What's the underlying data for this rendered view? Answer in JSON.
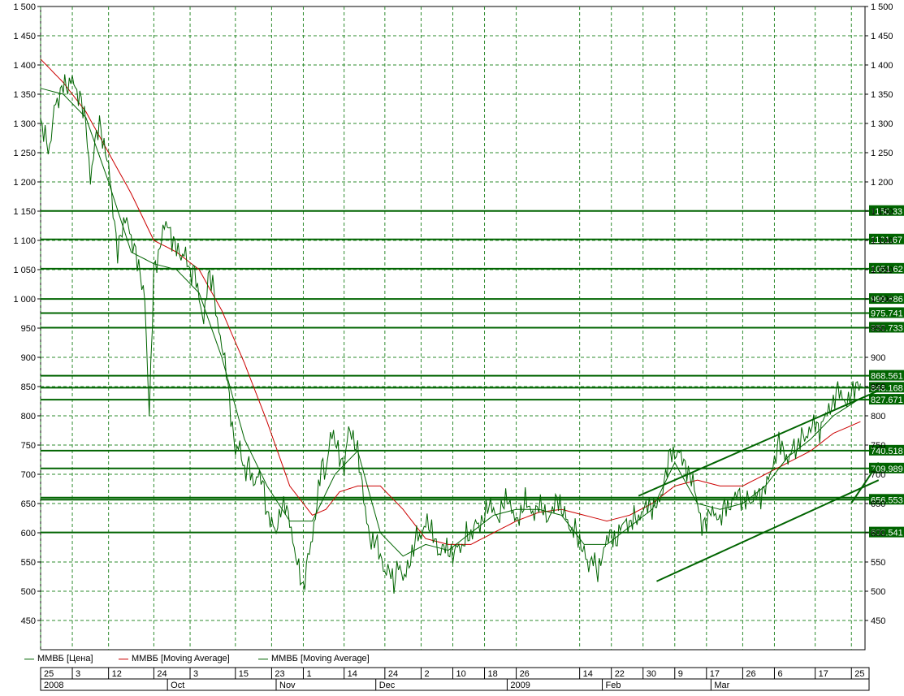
{
  "chart_data": {
    "type": "line",
    "y_ticks": [
      450,
      500,
      550,
      600,
      650,
      700,
      750,
      800,
      850,
      900,
      950,
      1000,
      1050,
      1100,
      1150,
      1200,
      1250,
      1300,
      1350,
      1400,
      1450,
      1500
    ],
    "y_tick_labels": [
      "450",
      "500",
      "550",
      "600",
      "650",
      "700",
      "750",
      "800",
      "850",
      "900",
      "950",
      "1 000",
      "1 050",
      "1 100",
      "1 150",
      "1 200",
      "1 250",
      "1 300",
      "1 350",
      "1 400",
      "1 450",
      "1 500"
    ],
    "ylim": [
      400,
      1500
    ],
    "day_ticks": [
      "25",
      "3",
      "12",
      "24",
      "3",
      "15",
      "23",
      "1",
      "14",
      "24",
      "2",
      "10",
      "18",
      "26",
      "14",
      "22",
      "30",
      "9",
      "17",
      "26",
      "6",
      "17",
      "25"
    ],
    "month_labels": [
      "2008",
      "Oct",
      "Nov",
      "Dec",
      "2009",
      "Feb",
      "Mar"
    ],
    "legend": [
      {
        "name": "ММВБ [Цена]",
        "color": "#006400"
      },
      {
        "name": "ММВБ [Moving Average]",
        "color": "#cc0000"
      },
      {
        "name": "ММВБ [Moving Average]",
        "color": "#006400"
      }
    ],
    "levels": [
      {
        "value": 1150.33,
        "label": "1150.33"
      },
      {
        "value": 1101.67,
        "label": "1101.67"
      },
      {
        "value": 1051.62,
        "label": "1051.62"
      },
      {
        "value": 999.886,
        "label": "999.886"
      },
      {
        "value": 975.741,
        "label": "975.741"
      },
      {
        "value": 950.733,
        "label": "950.733"
      },
      {
        "value": 868.561,
        "label": "868.561"
      },
      {
        "value": 848.168,
        "label": "848.168"
      },
      {
        "value": 827.671,
        "label": "827.671"
      },
      {
        "value": 740.518,
        "label": "740.518"
      },
      {
        "value": 709.989,
        "label": "709.989"
      },
      {
        "value": 656.553,
        "label": "656.553"
      },
      {
        "value": 600.541,
        "label": "600.541"
      }
    ],
    "level_extra": {
      "value": 660.0
    },
    "trendlines": [
      {
        "x": [
          132,
          185
        ],
        "y": [
          663,
          843
        ]
      },
      {
        "x": [
          136,
          185
        ],
        "y": [
          517,
          690
        ]
      },
      {
        "x": [
          179,
          185
        ],
        "y": [
          651,
          720
        ]
      }
    ],
    "price_anchors": [
      [
        0,
        1300
      ],
      [
        1,
        1280
      ],
      [
        2,
        1250
      ],
      [
        3,
        1330
      ],
      [
        4,
        1340
      ],
      [
        5,
        1370
      ],
      [
        6,
        1360
      ],
      [
        7,
        1380
      ],
      [
        8,
        1350
      ],
      [
        9,
        1340
      ],
      [
        10,
        1300
      ],
      [
        11,
        1200
      ],
      [
        12,
        1270
      ],
      [
        13,
        1300
      ],
      [
        14,
        1260
      ],
      [
        15,
        1230
      ],
      [
        16,
        1150
      ],
      [
        17,
        1080
      ],
      [
        18,
        1120
      ],
      [
        19,
        1140
      ],
      [
        20,
        1100
      ],
      [
        21,
        1080
      ],
      [
        22,
        1040
      ],
      [
        23,
        1000
      ],
      [
        24,
        800
      ],
      [
        25,
        1050
      ],
      [
        26,
        1070
      ],
      [
        27,
        1120
      ],
      [
        28,
        1130
      ],
      [
        29,
        1100
      ],
      [
        30,
        1090
      ],
      [
        31,
        1070
      ],
      [
        32,
        1080
      ],
      [
        33,
        1040
      ],
      [
        34,
        1050
      ],
      [
        35,
        1000
      ],
      [
        36,
        960
      ],
      [
        37,
        1040
      ],
      [
        38,
        1030
      ],
      [
        39,
        960
      ],
      [
        40,
        920
      ],
      [
        41,
        880
      ],
      [
        42,
        800
      ],
      [
        43,
        740
      ],
      [
        44,
        750
      ],
      [
        45,
        700
      ],
      [
        46,
        720
      ],
      [
        47,
        680
      ],
      [
        48,
        700
      ],
      [
        49,
        690
      ],
      [
        50,
        630
      ],
      [
        51,
        620
      ],
      [
        52,
        600
      ],
      [
        53,
        640
      ],
      [
        54,
        650
      ],
      [
        55,
        620
      ],
      [
        56,
        570
      ],
      [
        57,
        540
      ],
      [
        58,
        500
      ],
      [
        59,
        560
      ],
      [
        60,
        590
      ],
      [
        61,
        650
      ],
      [
        62,
        720
      ],
      [
        63,
        700
      ],
      [
        64,
        770
      ],
      [
        65,
        760
      ],
      [
        66,
        730
      ],
      [
        67,
        710
      ],
      [
        68,
        780
      ],
      [
        69,
        760
      ],
      [
        70,
        740
      ],
      [
        71,
        680
      ],
      [
        72,
        620
      ],
      [
        73,
        580
      ],
      [
        74,
        590
      ],
      [
        75,
        560
      ],
      [
        76,
        530
      ],
      [
        77,
        540
      ],
      [
        78,
        510
      ],
      [
        79,
        550
      ],
      [
        80,
        520
      ],
      [
        81,
        540
      ],
      [
        82,
        560
      ],
      [
        83,
        600
      ],
      [
        84,
        590
      ],
      [
        85,
        620
      ],
      [
        86,
        610
      ],
      [
        87,
        590
      ],
      [
        88,
        560
      ],
      [
        89,
        580
      ],
      [
        90,
        570
      ],
      [
        91,
        560
      ],
      [
        92,
        580
      ],
      [
        93,
        570
      ],
      [
        94,
        600
      ],
      [
        95,
        590
      ],
      [
        96,
        620
      ],
      [
        97,
        610
      ],
      [
        98,
        630
      ],
      [
        99,
        650
      ],
      [
        100,
        640
      ],
      [
        101,
        620
      ],
      [
        102,
        650
      ],
      [
        103,
        660
      ],
      [
        104,
        640
      ],
      [
        105,
        620
      ],
      [
        106,
        630
      ],
      [
        107,
        660
      ],
      [
        108,
        640
      ],
      [
        109,
        630
      ],
      [
        110,
        650
      ],
      [
        111,
        640
      ],
      [
        112,
        620
      ],
      [
        113,
        640
      ],
      [
        114,
        660
      ],
      [
        115,
        640
      ],
      [
        116,
        630
      ],
      [
        117,
        600
      ],
      [
        118,
        610
      ],
      [
        119,
        580
      ],
      [
        120,
        570
      ],
      [
        121,
        540
      ],
      [
        122,
        560
      ],
      [
        123,
        530
      ],
      [
        124,
        560
      ],
      [
        125,
        590
      ],
      [
        126,
        600
      ],
      [
        127,
        580
      ],
      [
        128,
        610
      ],
      [
        129,
        620
      ],
      [
        130,
        610
      ],
      [
        131,
        630
      ],
      [
        132,
        620
      ],
      [
        133,
        640
      ],
      [
        134,
        650
      ],
      [
        135,
        640
      ],
      [
        136,
        650
      ],
      [
        137,
        660
      ],
      [
        138,
        700
      ],
      [
        139,
        740
      ],
      [
        140,
        730
      ],
      [
        141,
        740
      ],
      [
        142,
        720
      ],
      [
        143,
        700
      ],
      [
        144,
        690
      ],
      [
        145,
        650
      ],
      [
        146,
        610
      ],
      [
        147,
        620
      ],
      [
        148,
        640
      ],
      [
        149,
        630
      ],
      [
        150,
        620
      ],
      [
        151,
        650
      ],
      [
        152,
        640
      ],
      [
        153,
        660
      ],
      [
        154,
        670
      ],
      [
        155,
        650
      ],
      [
        156,
        660
      ],
      [
        157,
        650
      ],
      [
        158,
        670
      ],
      [
        159,
        660
      ],
      [
        160,
        680
      ],
      [
        161,
        700
      ],
      [
        162,
        720
      ],
      [
        163,
        760
      ],
      [
        164,
        740
      ],
      [
        165,
        720
      ],
      [
        166,
        750
      ],
      [
        167,
        740
      ],
      [
        168,
        770
      ],
      [
        169,
        760
      ],
      [
        170,
        780
      ],
      [
        171,
        790
      ],
      [
        172,
        770
      ],
      [
        173,
        800
      ],
      [
        174,
        810
      ],
      [
        175,
        820
      ],
      [
        176,
        850
      ],
      [
        177,
        830
      ],
      [
        178,
        820
      ],
      [
        179,
        840
      ],
      [
        180,
        850
      ],
      [
        181,
        855
      ]
    ],
    "ma_long_anchors": [
      [
        0,
        1410
      ],
      [
        5,
        1370
      ],
      [
        10,
        1320
      ],
      [
        15,
        1250
      ],
      [
        20,
        1180
      ],
      [
        25,
        1100
      ],
      [
        30,
        1080
      ],
      [
        35,
        1050
      ],
      [
        40,
        980
      ],
      [
        45,
        890
      ],
      [
        50,
        790
      ],
      [
        55,
        680
      ],
      [
        60,
        630
      ],
      [
        63,
        640
      ],
      [
        66,
        670
      ],
      [
        70,
        680
      ],
      [
        75,
        680
      ],
      [
        80,
        640
      ],
      [
        85,
        590
      ],
      [
        90,
        580
      ],
      [
        95,
        580
      ],
      [
        100,
        600
      ],
      [
        105,
        620
      ],
      [
        110,
        635
      ],
      [
        115,
        640
      ],
      [
        120,
        630
      ],
      [
        125,
        620
      ],
      [
        130,
        630
      ],
      [
        135,
        650
      ],
      [
        140,
        680
      ],
      [
        145,
        690
      ],
      [
        150,
        680
      ],
      [
        155,
        680
      ],
      [
        160,
        700
      ],
      [
        165,
        720
      ],
      [
        170,
        740
      ],
      [
        175,
        770
      ],
      [
        181,
        790
      ]
    ],
    "ma_short_anchors": [
      [
        0,
        1360
      ],
      [
        5,
        1350
      ],
      [
        10,
        1310
      ],
      [
        15,
        1200
      ],
      [
        20,
        1080
      ],
      [
        25,
        1060
      ],
      [
        30,
        1050
      ],
      [
        35,
        1010
      ],
      [
        40,
        900
      ],
      [
        45,
        760
      ],
      [
        50,
        680
      ],
      [
        55,
        620
      ],
      [
        60,
        620
      ],
      [
        65,
        700
      ],
      [
        70,
        740
      ],
      [
        75,
        600
      ],
      [
        80,
        560
      ],
      [
        85,
        580
      ],
      [
        90,
        570
      ],
      [
        95,
        600
      ],
      [
        100,
        630
      ],
      [
        105,
        640
      ],
      [
        110,
        640
      ],
      [
        115,
        630
      ],
      [
        120,
        580
      ],
      [
        125,
        580
      ],
      [
        130,
        610
      ],
      [
        135,
        640
      ],
      [
        140,
        720
      ],
      [
        145,
        650
      ],
      [
        150,
        640
      ],
      [
        155,
        650
      ],
      [
        160,
        680
      ],
      [
        165,
        730
      ],
      [
        170,
        760
      ],
      [
        175,
        800
      ],
      [
        181,
        830
      ]
    ]
  }
}
